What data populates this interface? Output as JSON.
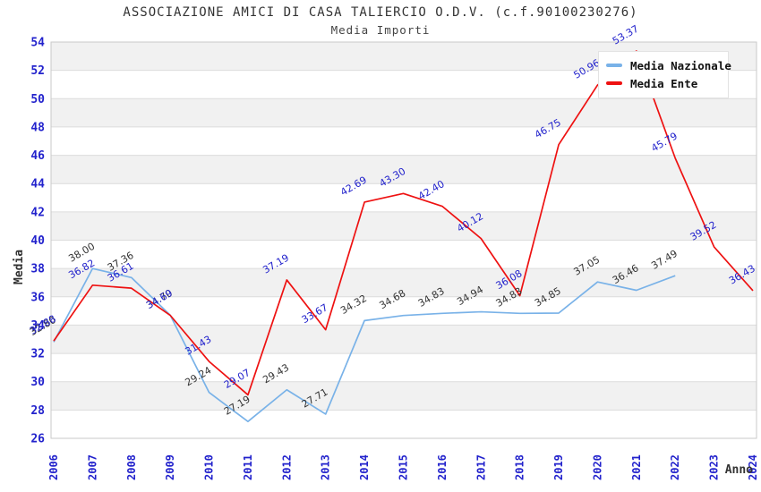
{
  "header": {
    "title": "ASSOCIAZIONE AMICI DI CASA TALIERCIO O.D.V. (c.f.90100230276)",
    "subtitle": "Media Importi"
  },
  "legend": {
    "items": [
      {
        "label": "Media Nazionale",
        "color": "#79b2e8"
      },
      {
        "label": "Media Ente",
        "color": "#ee1111"
      }
    ]
  },
  "chart_data": {
    "type": "line",
    "title": "ASSOCIAZIONE AMICI DI CASA TALIERCIO O.D.V. (c.f.90100230276)",
    "subtitle": "Media Importi",
    "xlabel": "Anno",
    "ylabel": "Media",
    "x": [
      2006,
      2007,
      2008,
      2009,
      2010,
      2011,
      2012,
      2013,
      2014,
      2015,
      2016,
      2017,
      2018,
      2019,
      2020,
      2021,
      2022,
      2023,
      2024
    ],
    "ylim": [
      26,
      54
    ],
    "ytick_step": 2,
    "grid": "banded-horizontal",
    "legend_position": "top-right",
    "axis_color": "#2222cc",
    "band_color": "#f1f1f1",
    "gridline_color": "#dcdcdc",
    "series": [
      {
        "name": "Media Nazionale",
        "color": "#79b2e8",
        "label_color": "#333333",
        "values": [
          32.8,
          38,
          37.36,
          34.7,
          29.24,
          27.19,
          29.43,
          27.71,
          34.32,
          34.68,
          34.83,
          34.94,
          34.83,
          34.85,
          37.05,
          36.46,
          37.49,
          null,
          null
        ]
      },
      {
        "name": "Media Ente",
        "color": "#ee1111",
        "label_color": "#2222cc",
        "values": [
          32.88,
          36.82,
          36.61,
          34.69,
          31.43,
          29.07,
          37.19,
          33.67,
          42.69,
          43.3,
          42.4,
          40.12,
          36.08,
          46.75,
          50.96,
          53.37,
          45.79,
          39.52,
          36.43
        ]
      }
    ]
  }
}
